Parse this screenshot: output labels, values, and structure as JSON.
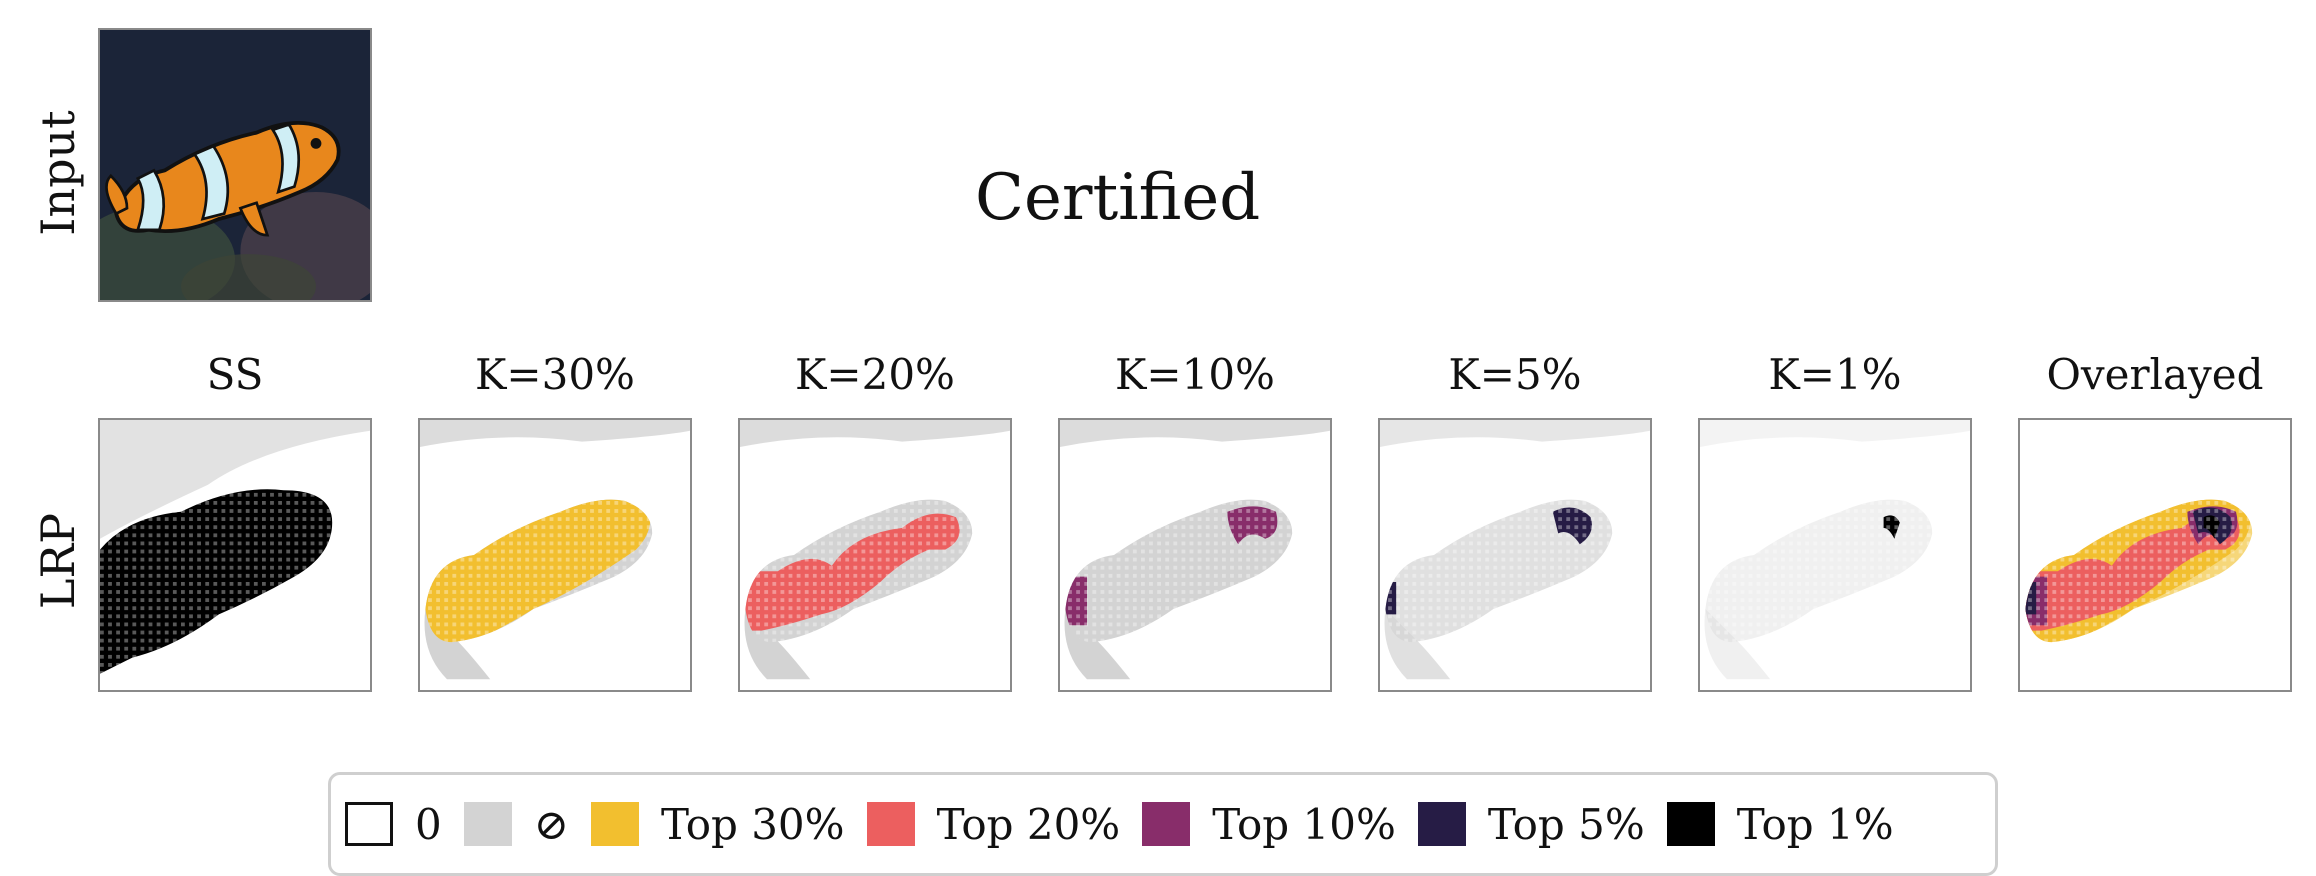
{
  "title": "Certified",
  "row_labels": {
    "input": "Input",
    "lrp": "LRP"
  },
  "columns": [
    {
      "label": "SS",
      "mode": "ss",
      "color": "#000000"
    },
    {
      "label": "K=30%",
      "mode": "k",
      "color": "#f2bf2f"
    },
    {
      "label": "K=20%",
      "mode": "k",
      "color": "#ec5f5f"
    },
    {
      "label": "K=10%",
      "mode": "k",
      "color": "#882d6a"
    },
    {
      "label": "K=5%",
      "mode": "k",
      "color": "#261c45"
    },
    {
      "label": "K=1%",
      "mode": "k",
      "color": "#000000"
    },
    {
      "label": "Overlayed",
      "mode": "overlay",
      "color": "#f2bf2f"
    }
  ],
  "legend": [
    {
      "label": "0",
      "color": "#ffffff",
      "icon": "empty-square"
    },
    {
      "label": "⊘",
      "color": "#d3d3d3",
      "icon": "null-symbol"
    },
    {
      "label": "Top 30%",
      "color": "#f2bf2f"
    },
    {
      "label": "Top 20%",
      "color": "#ec5f5f"
    },
    {
      "label": "Top 10%",
      "color": "#882d6a"
    },
    {
      "label": "Top 5%",
      "color": "#261c45"
    },
    {
      "label": "Top 1%",
      "color": "#000000"
    }
  ],
  "colors": {
    "null_gray": "#d3d3d3",
    "fish_orange": "#e8871c",
    "fish_stripe": "#cfeef5",
    "background_dark": "#1a2236"
  }
}
